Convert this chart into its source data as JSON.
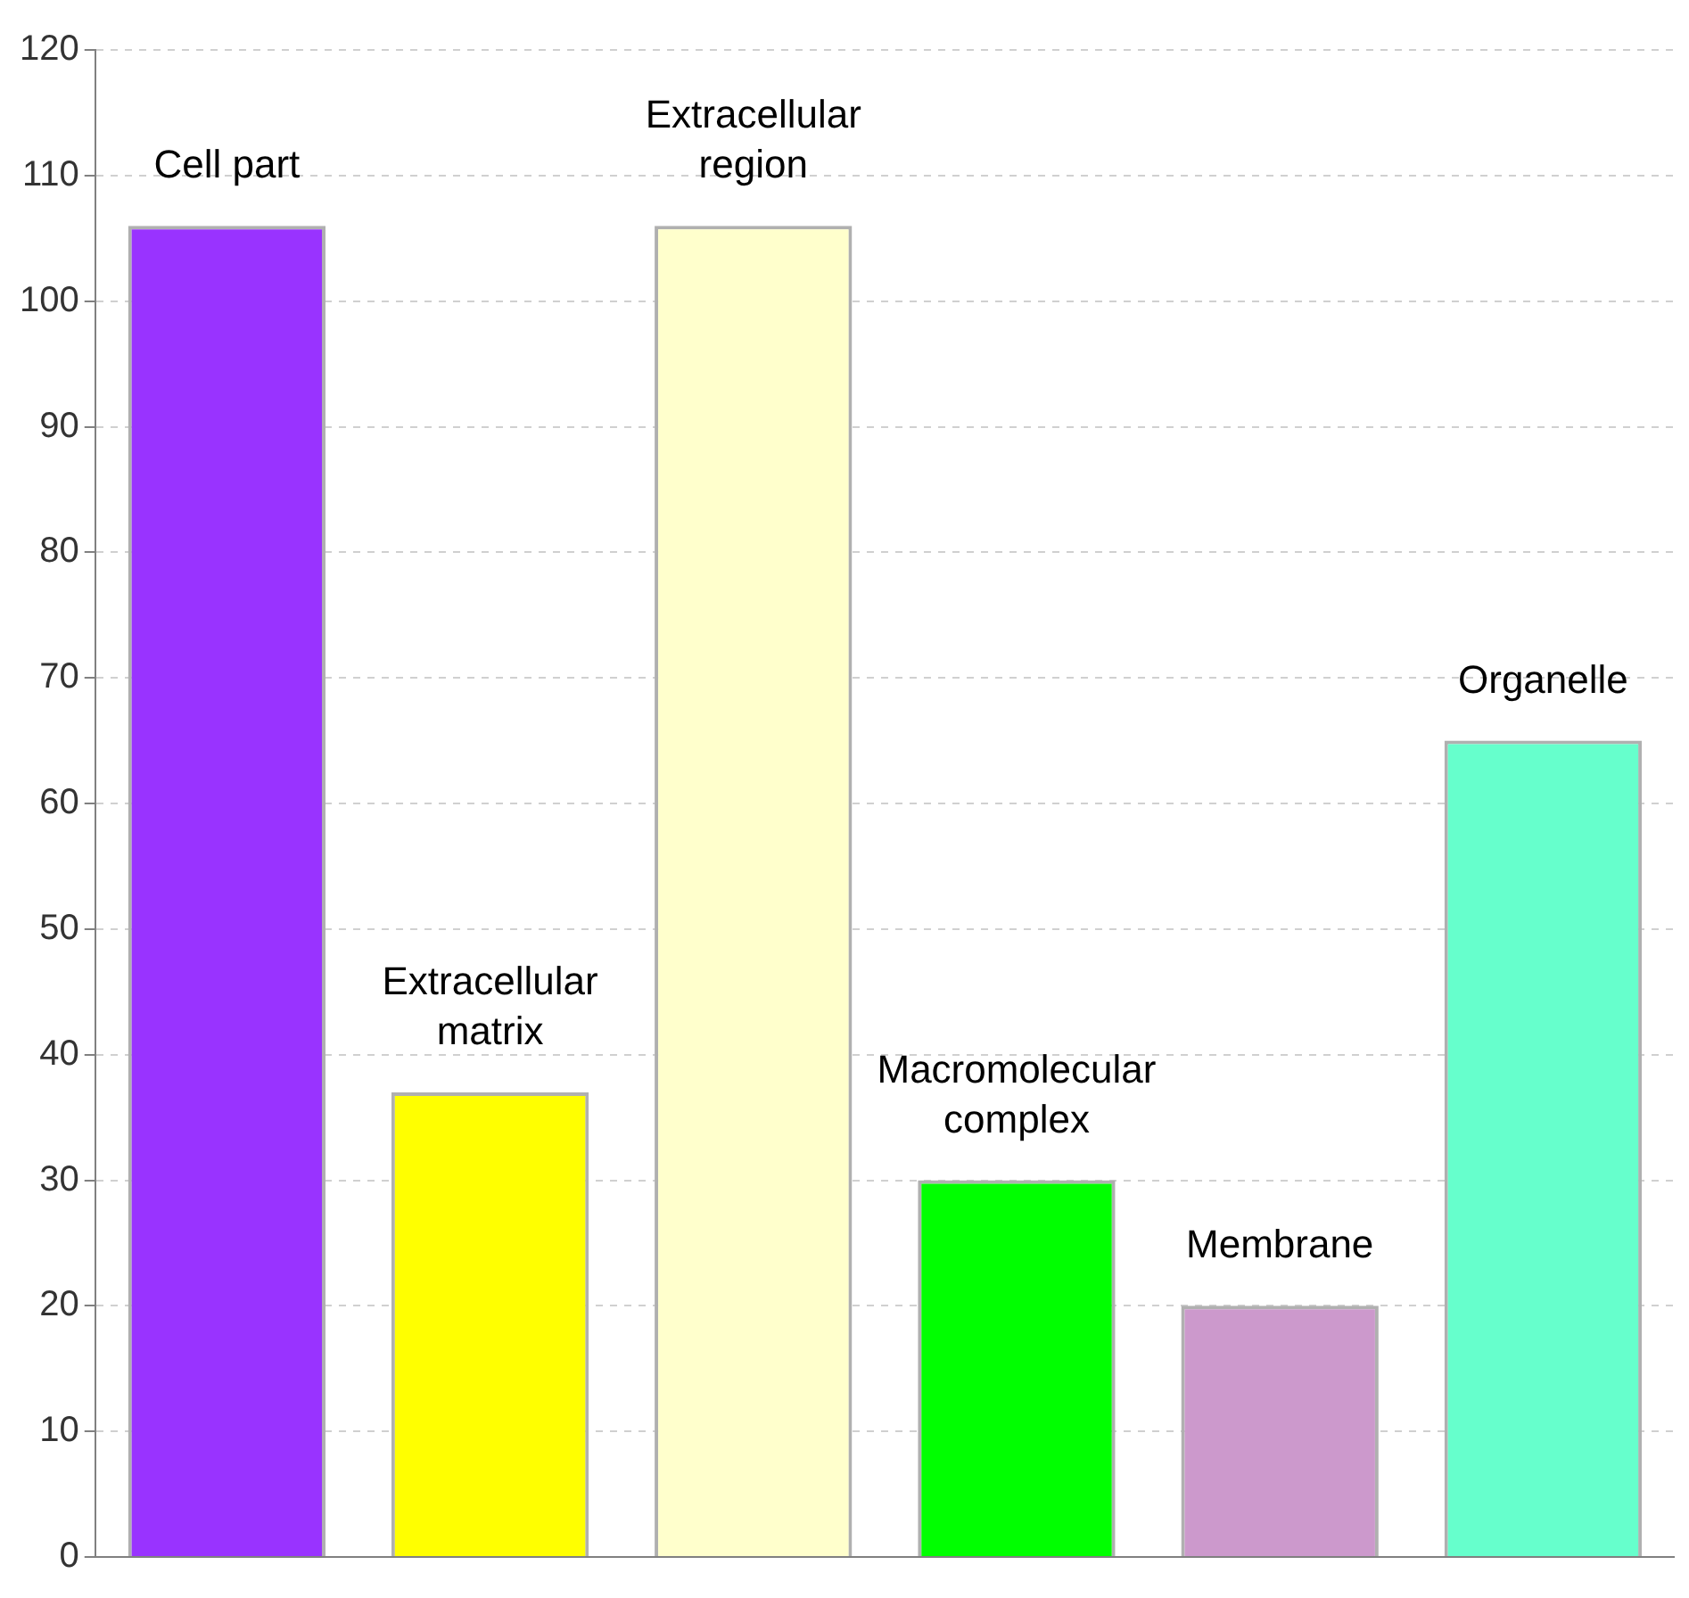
{
  "chart_data": {
    "type": "bar",
    "categories": [
      "Cell part",
      "Extracellular matrix",
      "Extracellular region",
      "Macromolecular complex",
      "Membrane",
      "Organelle"
    ],
    "values": [
      106,
      37,
      106,
      30,
      20,
      65
    ],
    "colors": [
      "#9933ff",
      "#ffff00",
      "#ffffcc",
      "#00ff00",
      "#cc99cc",
      "#66ffcc"
    ],
    "ylim": [
      0,
      120
    ],
    "yticks": [
      0,
      10,
      20,
      30,
      40,
      50,
      60,
      70,
      80,
      90,
      100,
      110,
      120
    ],
    "grid": "y",
    "tick_labels": "y",
    "legend": false
  }
}
